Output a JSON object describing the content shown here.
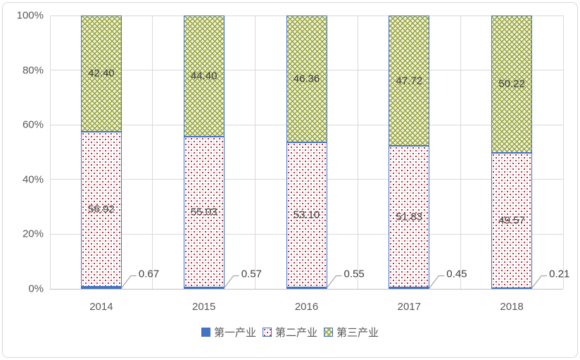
{
  "chart_data": {
    "type": "bar",
    "subtype": "stacked-100-percent",
    "categories": [
      "2014",
      "2015",
      "2016",
      "2017",
      "2018"
    ],
    "series": [
      {
        "name": "第一产业",
        "values": [
          0.67,
          0.57,
          0.55,
          0.45,
          0.21
        ],
        "labels": [
          "0.67",
          "0.57",
          "0.55",
          "0.45",
          "0.21"
        ],
        "pattern": "solid-blue",
        "label_placement": "leader-line-right"
      },
      {
        "name": "第二产业",
        "values": [
          56.92,
          55.03,
          53.1,
          51.83,
          49.57
        ],
        "labels": [
          "56.92",
          "55.03",
          "53.10",
          "51.83",
          "49.57"
        ],
        "pattern": "red-dots-on-white",
        "label_placement": "inside-center"
      },
      {
        "name": "第三产业",
        "values": [
          42.4,
          44.4,
          46.36,
          47.72,
          50.22
        ],
        "labels": [
          "42.40",
          "44.40",
          "46.36",
          "47.72",
          "50.22"
        ],
        "pattern": "green-crosshatch",
        "label_placement": "inside-center"
      }
    ],
    "y_axis": {
      "ticks": [
        "0%",
        "20%",
        "40%",
        "60%",
        "80%",
        "100%"
      ],
      "min": 0,
      "max": 100
    },
    "grid": true,
    "legend": {
      "position": "bottom-center",
      "items": [
        "第一产业",
        "第二产业",
        "第三产业"
      ]
    },
    "title": "",
    "xlabel": "",
    "ylabel": ""
  },
  "colors": {
    "accent_blue": "#4472C4",
    "dot_red": "#A04048",
    "dot_pink": "#F4BBC8",
    "hatch_green": "#96A23E",
    "hatch_background": "#F0F3DB",
    "gridline": "#D9D9D9",
    "axis_line": "#BFBFBF",
    "data_label_text": "#404040",
    "axis_text": "#595959",
    "leader_line": "#A6A6A6",
    "frame_border": "#D9D9D9"
  }
}
